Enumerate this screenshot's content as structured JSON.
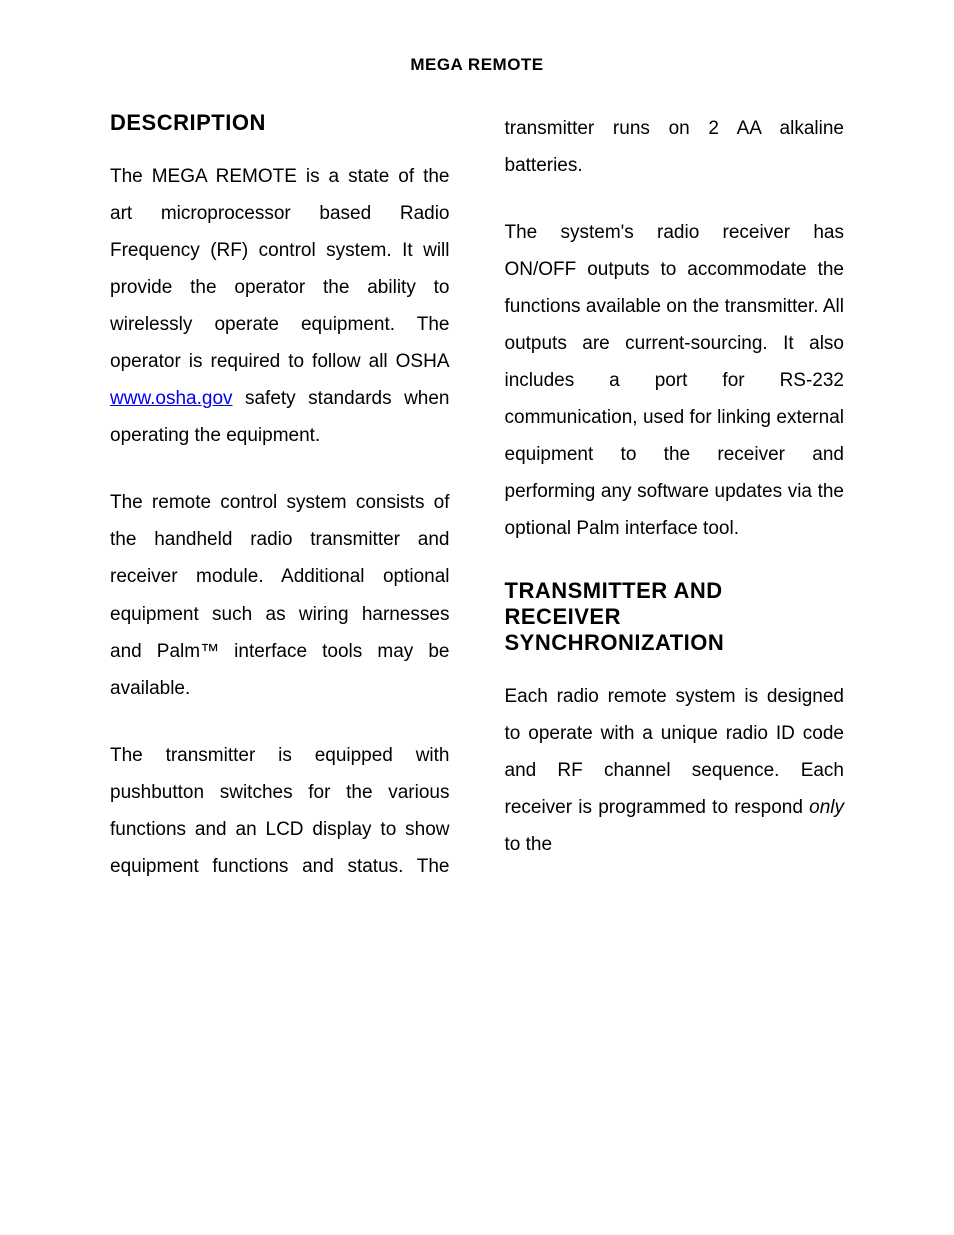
{
  "header": "MEGA REMOTE",
  "sections": [
    {
      "heading": "DESCRIPTION",
      "paras": [
        {
          "pre": "The MEGA REMOTE is a state of the art microprocessor based Radio Frequency (RF) control system. It will provide the operator the ability to wirelessly operate equipment. The operator is required to follow all OSHA ",
          "link": "www.osha.gov",
          "post": " safety standards when operating the equipment."
        },
        {
          "text": "The remote control system consists of the handheld radio transmitter and receiver module. Additional optional equipment such as wiring harnesses and Palm™ interface tools may be available."
        },
        {
          "text": "The transmitter is equipped with pushbutton switches for the various functions and an LCD display to show equipment functions and status. The transmitter runs on 2 AA alkaline batteries."
        },
        {
          "text": "The system's radio receiver has ON/OFF outputs to accommodate the functions available on the transmitter. All outputs are current-sourcing. It also includes a port for RS-232 communication, used for linking external equipment to the receiver and performing any software updates via the optional Palm interface tool."
        }
      ]
    },
    {
      "heading": "TRANSMITTER AND RECEIVER SYNCHRONIZATION",
      "paras": [
        {
          "pre": "Each radio remote system is designed to operate with a unique radio ID code and RF channel sequence. Each receiver is programmed to respond ",
          "italic": "only",
          "post": " to the"
        }
      ]
    }
  ]
}
